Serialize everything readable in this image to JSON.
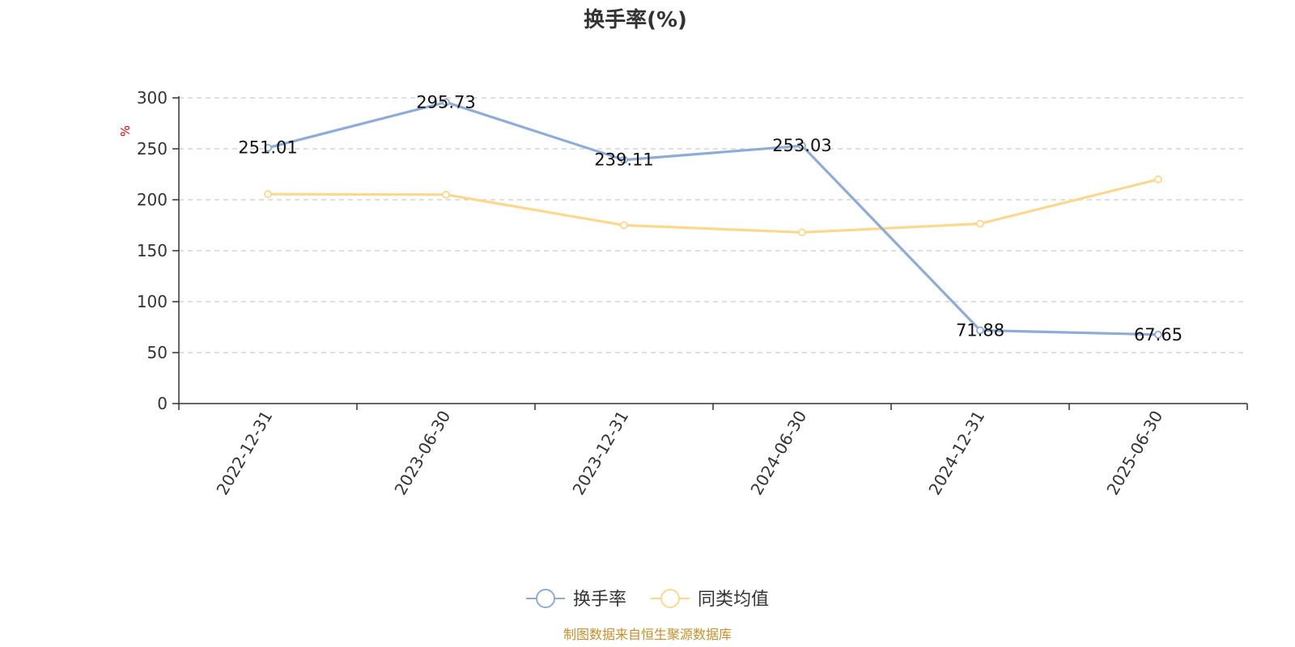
{
  "chart_data": {
    "type": "line",
    "title": "换手率(%)",
    "ylabel": "%",
    "xlabel": "",
    "categories": [
      "2022-12-31",
      "2023-06-30",
      "2023-12-31",
      "2024-06-30",
      "2024-12-31",
      "2025-06-30"
    ],
    "ylim": [
      0,
      300
    ],
    "yticks": [
      0,
      50,
      100,
      150,
      200,
      250,
      300
    ],
    "grid": true,
    "legend_position": "bottom-center",
    "series": [
      {
        "name": "换手率",
        "color": "#8eacd6",
        "values": [
          251.01,
          295.73,
          239.11,
          253.03,
          71.88,
          67.65
        ],
        "labels": [
          "251.01",
          "295.73",
          "239.11",
          "253.03",
          "71.88",
          "67.65"
        ]
      },
      {
        "name": "同类均值",
        "color": "#fcd88f",
        "values": [
          205.5,
          205.0,
          175.0,
          168.0,
          176.5,
          220.0
        ]
      }
    ],
    "source": "制图数据来自恒生聚源数据库"
  }
}
